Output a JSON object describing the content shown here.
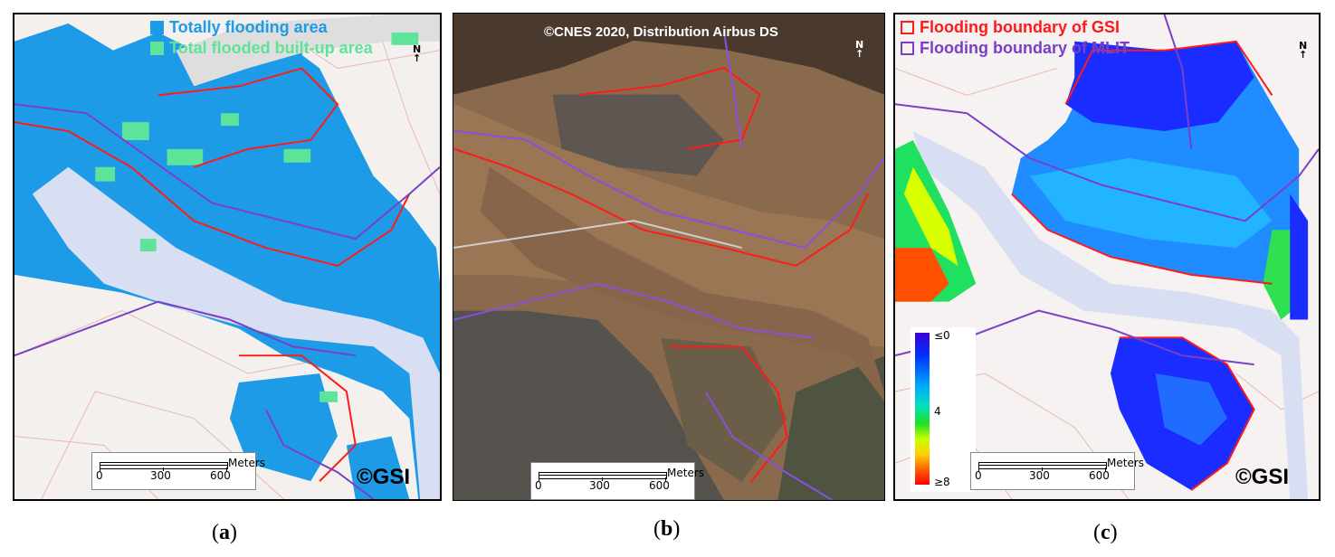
{
  "panel_a": {
    "legend": [
      {
        "label": "Totally flooding area",
        "color": "#1e9be6"
      },
      {
        "label": "Total flooded built-up area",
        "color": "#5ee39a"
      }
    ],
    "north": "N",
    "scale_numbers": [
      "0",
      "300",
      "600"
    ],
    "scale_unit": "Meters",
    "credit": "©GSI"
  },
  "panel_b": {
    "credit": "©CNES 2020, Distribution Airbus DS",
    "north": "N",
    "scale_numbers": [
      "0",
      "300",
      "600"
    ],
    "scale_unit": "Meters"
  },
  "panel_c": {
    "legend": [
      {
        "label": "Flooding boundary of GSI",
        "color": "#ff1a1a"
      },
      {
        "label": "Flooding boundary of MLIT",
        "color": "#7b3fc7"
      }
    ],
    "north": "N",
    "colorbar_labels": [
      "≤0",
      "4",
      "≥8"
    ],
    "scale_numbers": [
      "0",
      "300",
      "600"
    ],
    "scale_unit": "Meters",
    "credit": "©GSI"
  },
  "captions": {
    "a": "a",
    "b": "b",
    "c": "c"
  }
}
